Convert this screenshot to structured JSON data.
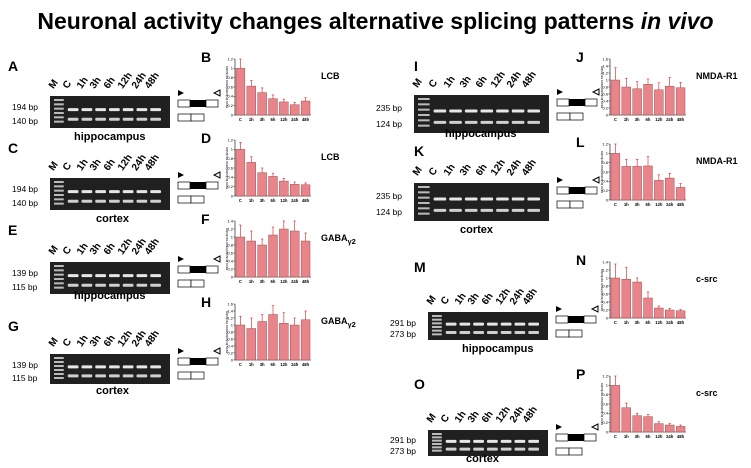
{
  "title_prefix": "Neuronal activity changes alternative splicing patterns ",
  "title_italic": "in vivo",
  "colors": {
    "bar": "#e8848a",
    "bar_stroke": "#8a3a3a",
    "err": "#d02020",
    "gel": "#202020",
    "band": "#e6e6e6"
  },
  "lanes": [
    "M",
    "C",
    "1h",
    "3h",
    "6h",
    "12h",
    "24h",
    "48h"
  ],
  "chart_categories": [
    "C",
    "1h",
    "3h",
    "6h",
    "12h",
    "24h",
    "48h"
  ],
  "chart_ylabel": "exon inclusion/exon exclusion",
  "panels": [
    {
      "letter": "A",
      "tissue": "hippocampus",
      "bp_top": "194 bp",
      "bp_bottom": "140 bp"
    },
    {
      "letter": "C",
      "tissue": "cortex",
      "bp_top": "194 bp",
      "bp_bottom": "140 bp"
    },
    {
      "letter": "E",
      "tissue": "hippocampus",
      "bp_top": "139 bp",
      "bp_bottom": "115 bp"
    },
    {
      "letter": "G",
      "tissue": "cortex",
      "bp_top": "139 bp",
      "bp_bottom": "115 bp"
    },
    {
      "letter": "I",
      "tissue": "hippocampus",
      "bp_top": "235 bp",
      "bp_bottom": "124 bp"
    },
    {
      "letter": "K",
      "tissue": "cortex",
      "bp_top": "235 bp",
      "bp_bottom": "124 bp"
    },
    {
      "letter": "M",
      "tissue": "hippocampus",
      "bp_top": "291 bp",
      "bp_bottom": "273 bp"
    },
    {
      "letter": "O",
      "tissue": "cortex",
      "bp_top": "291 bp",
      "bp_bottom": "273 bp"
    }
  ],
  "chart_data": [
    {
      "letter": "B",
      "type": "bar",
      "gene": "LCB",
      "ylim": [
        0,
        1.2
      ],
      "values": [
        1.0,
        0.62,
        0.48,
        0.35,
        0.28,
        0.22,
        0.3
      ],
      "errors": [
        0.2,
        0.12,
        0.1,
        0.08,
        0.06,
        0.05,
        0.07
      ]
    },
    {
      "letter": "D",
      "type": "bar",
      "gene": "LCB",
      "ylim": [
        0,
        1.2
      ],
      "values": [
        1.0,
        0.72,
        0.5,
        0.42,
        0.32,
        0.25,
        0.24
      ],
      "errors": [
        0.15,
        0.12,
        0.1,
        0.07,
        0.06,
        0.05,
        0.04
      ]
    },
    {
      "letter": "F",
      "type": "bar",
      "gene": "GABA",
      "gene_sub": "γ2",
      "ylim": [
        0,
        1.4
      ],
      "values": [
        1.0,
        0.9,
        0.8,
        1.05,
        1.2,
        1.15,
        0.9
      ],
      "errors": [
        0.3,
        0.25,
        0.15,
        0.2,
        0.25,
        0.3,
        0.2
      ]
    },
    {
      "letter": "H",
      "type": "bar",
      "gene": "GABA",
      "gene_sub": "γ2",
      "ylim": [
        0,
        1.6
      ],
      "values": [
        1.0,
        0.9,
        1.1,
        1.3,
        1.05,
        1.0,
        1.15
      ],
      "errors": [
        0.25,
        0.3,
        0.2,
        0.25,
        0.3,
        0.2,
        0.25
      ]
    },
    {
      "letter": "J",
      "type": "bar",
      "gene": "NMDA-R1",
      "ylim": [
        0,
        1.6
      ],
      "values": [
        1.0,
        0.8,
        0.75,
        0.88,
        0.72,
        0.82,
        0.78
      ],
      "errors": [
        0.35,
        0.25,
        0.2,
        0.15,
        0.2,
        0.25,
        0.15
      ]
    },
    {
      "letter": "L",
      "type": "bar",
      "gene": "NMDA-R1",
      "ylim": [
        0,
        1.2
      ],
      "values": [
        1.0,
        0.72,
        0.72,
        0.73,
        0.42,
        0.47,
        0.27
      ],
      "errors": [
        0.2,
        0.15,
        0.15,
        0.2,
        0.12,
        0.1,
        0.08
      ]
    },
    {
      "letter": "N",
      "type": "bar",
      "gene": "c-src",
      "ylim": [
        0,
        1.4
      ],
      "values": [
        1.0,
        0.97,
        0.9,
        0.5,
        0.25,
        0.2,
        0.18
      ],
      "errors": [
        0.35,
        0.3,
        0.1,
        0.15,
        0.05,
        0.04,
        0.03
      ]
    },
    {
      "letter": "P",
      "type": "bar",
      "gene": "c-src",
      "ylim": [
        0,
        1.2
      ],
      "values": [
        1.0,
        0.52,
        0.35,
        0.33,
        0.18,
        0.15,
        0.12
      ],
      "errors": [
        0.2,
        0.1,
        0.05,
        0.05,
        0.04,
        0.03,
        0.03
      ]
    }
  ]
}
